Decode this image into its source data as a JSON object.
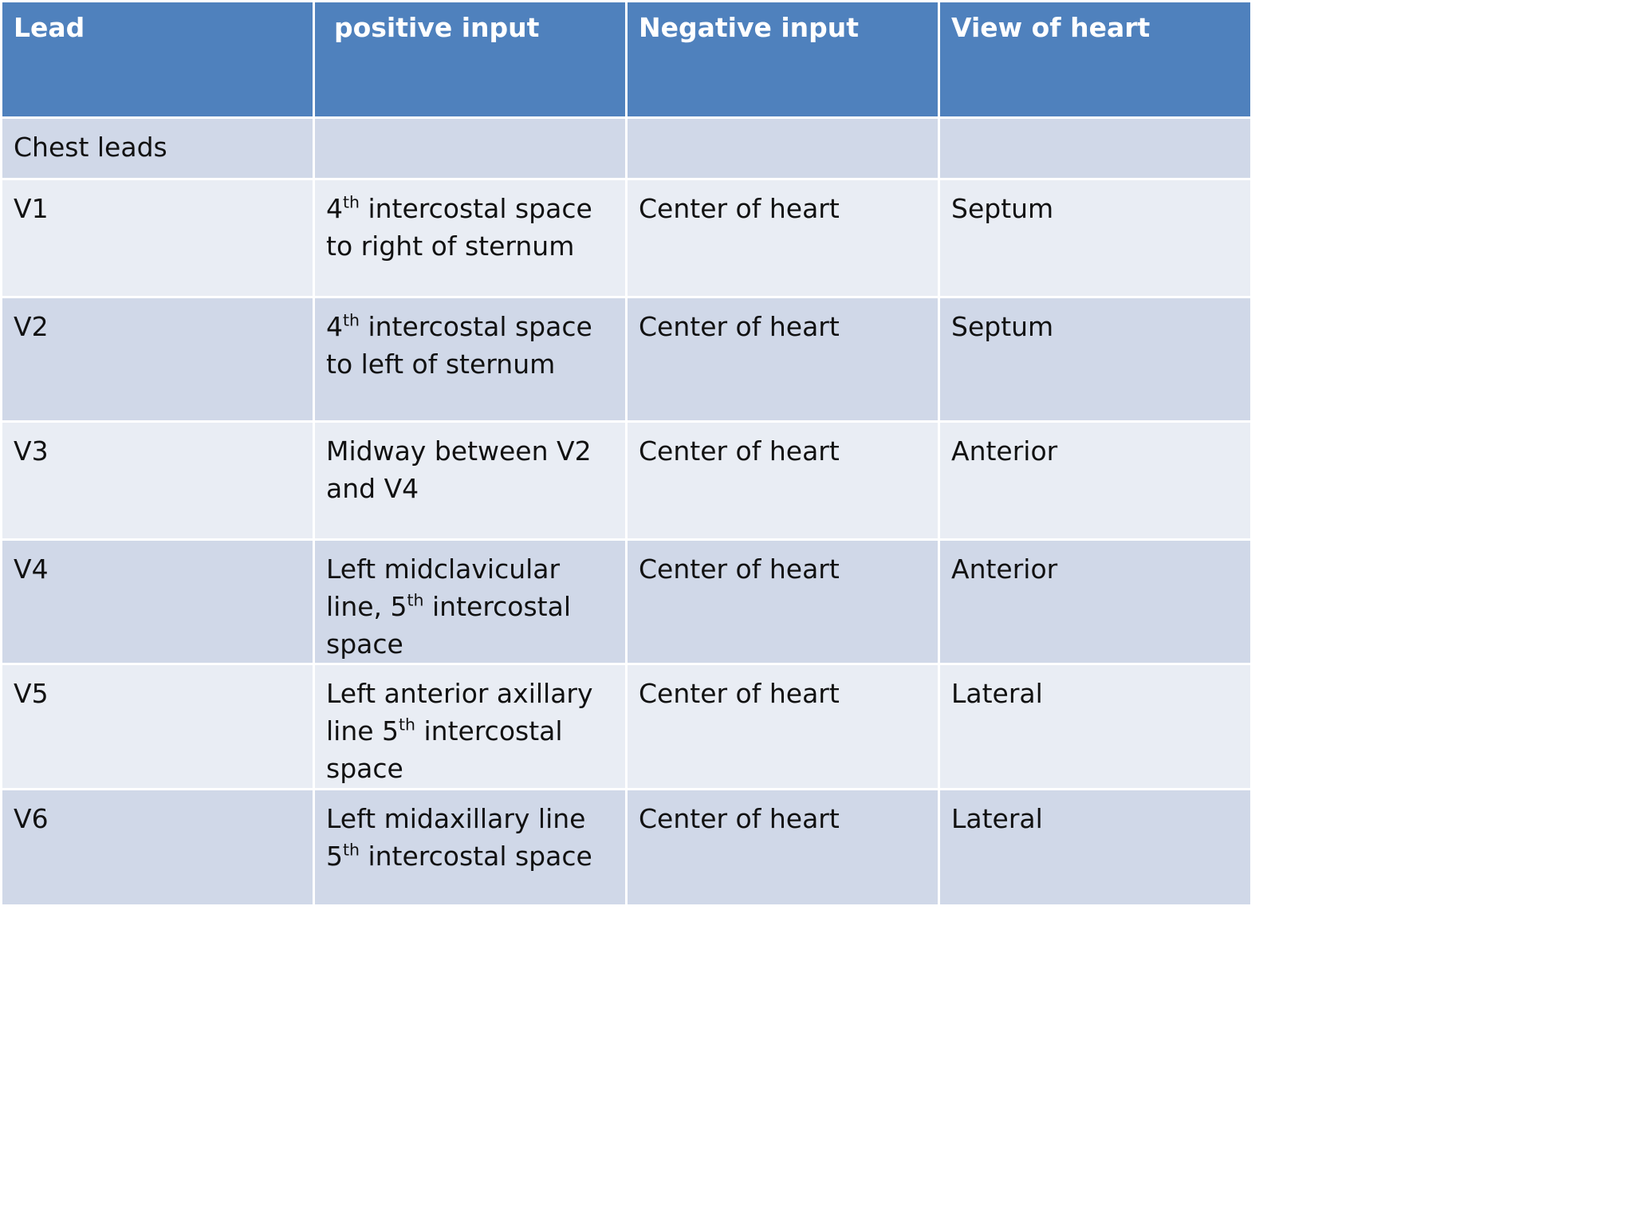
{
  "headers": [
    "Lead",
    "positive input",
    "Negative input",
    "View of heart"
  ],
  "section_row": {
    "label": "Chest leads"
  },
  "rows": [
    {
      "lead": "V1",
      "positive": {
        "pre": "4",
        "sup": "th",
        "post": " intercostal space to right of sternum"
      },
      "negative": "Center of heart",
      "view": "Septum"
    },
    {
      "lead": "V2",
      "positive": {
        "pre": "4",
        "sup": "th",
        "post": " intercostal space to left of sternum"
      },
      "negative": "Center of heart",
      "view": "Septum"
    },
    {
      "lead": "V3",
      "positive": {
        "pre": "Midway between V2 and V4",
        "sup": "",
        "post": ""
      },
      "negative": "Center of heart",
      "view": "Anterior"
    },
    {
      "lead": "V4",
      "positive": {
        "pre": "Left midclavicular line, 5",
        "sup": "th",
        "post": " intercostal space"
      },
      "negative": "Center of heart",
      "view": "Anterior"
    },
    {
      "lead": "V5",
      "positive": {
        "pre": "Left anterior axillary line 5",
        "sup": "th",
        "post": " intercostal space"
      },
      "negative": "Center of heart",
      "view": "Lateral"
    },
    {
      "lead": "V6",
      "positive": {
        "pre": "Left midaxillary line 5",
        "sup": "th",
        "post": " intercostal space"
      },
      "negative": "Center of heart",
      "view": "Lateral"
    }
  ],
  "colors": {
    "header": "#4f81bd",
    "band": "#d0d8e8",
    "plain": "#e9edf4",
    "border": "#ffffff"
  }
}
